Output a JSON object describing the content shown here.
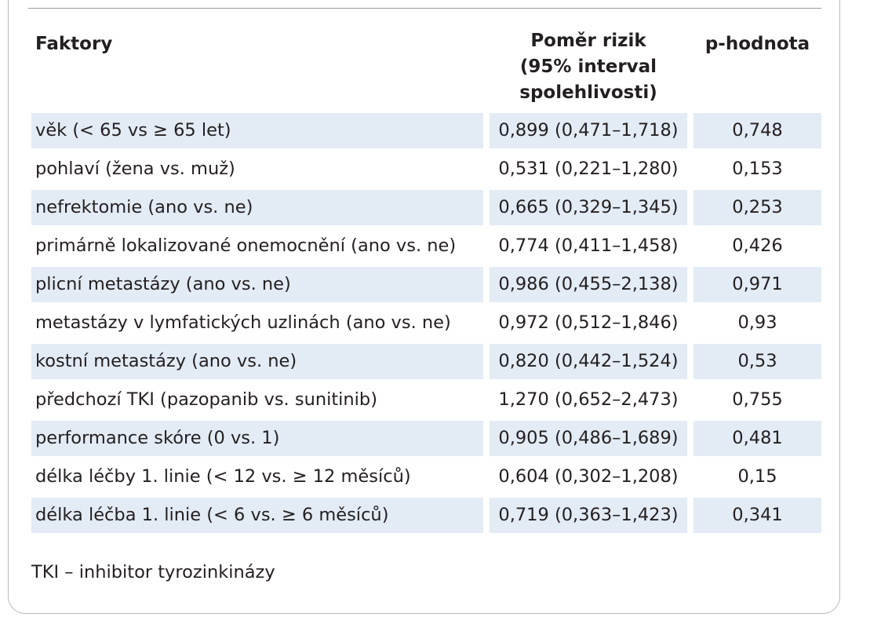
{
  "table": {
    "headers": {
      "factor": "Faktory",
      "ratio_line1": "Poměr rizik",
      "ratio_line2": "(95% interval",
      "ratio_line3": "spolehlivosti)",
      "p_value": "p-hodnota"
    },
    "rows": [
      {
        "factor": "věk (< 65 vs ≥ 65 let)",
        "ratio": "0,899 (0,471–1,718)",
        "p": "0,748"
      },
      {
        "factor": "pohlaví (žena vs. muž)",
        "ratio": "0,531 (0,221–1,280)",
        "p": "0,153"
      },
      {
        "factor": "nefrektomie (ano vs. ne)",
        "ratio": "0,665 (0,329–1,345)",
        "p": "0,253"
      },
      {
        "factor": "primárně lokalizované onemocnění (ano vs. ne)",
        "ratio": "0,774 (0,411–1,458)",
        "p": "0,426"
      },
      {
        "factor": "plicní metastázy (ano vs. ne)",
        "ratio": "0,986 (0,455–2,138)",
        "p": "0,971"
      },
      {
        "factor": "metastázy v lymfatických uzlinách (ano vs. ne)",
        "ratio": "0,972 (0,512–1,846)",
        "p": "0,93"
      },
      {
        "factor": "kostní metastázy (ano vs. ne)",
        "ratio": "0,820 (0,442–1,524)",
        "p": "0,53"
      },
      {
        "factor": "předchozí TKI (pazopanib vs. sunitinib)",
        "ratio": "1,270 (0,652–2,473)",
        "p": "0,755"
      },
      {
        "factor": "performance skóre (0 vs. 1)",
        "ratio": "0,905 (0,486–1,689)",
        "p": "0,481"
      },
      {
        "factor": "délka léčby 1. linie (< 12 vs. ≥ 12 měsíců)",
        "ratio": "0,604 (0,302–1,208)",
        "p": "0,15"
      },
      {
        "factor": "délka léčba 1. linie (< 6 vs. ≥ 6 měsíců)",
        "ratio": "0,719 (0,363–1,423)",
        "p": "0,341"
      }
    ]
  },
  "footnote": "TKI – inhibitor tyrozinkinázy",
  "colors": {
    "row_stripe": "#e3ebf5",
    "text": "#231f20",
    "border": "#b8b8b8"
  }
}
